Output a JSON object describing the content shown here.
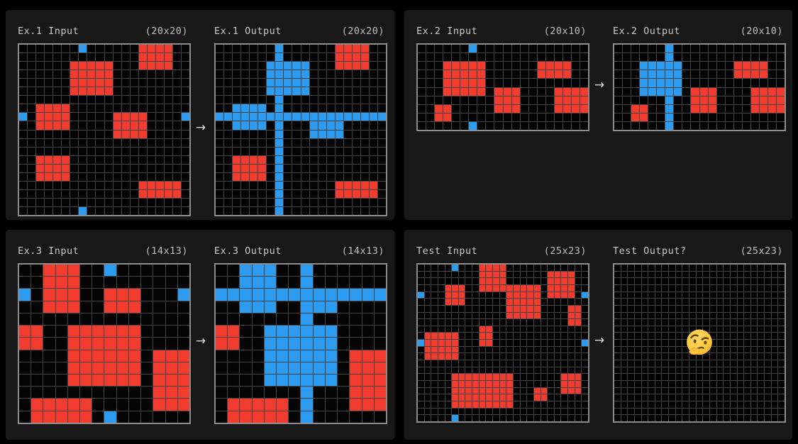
{
  "ui": {
    "arrow": "→",
    "emoji": "thinking-face"
  },
  "colors": {
    "page_bg": "#000000",
    "panel_bg": "#181818",
    "header_text": "#c9c9c9",
    "grid_border": "#8c8c8c",
    "grid_line": "#434343",
    "cell_bg": "#040404",
    "red": "#F23C2F",
    "blue": "#2D9BF0"
  },
  "panels": [
    {
      "id": "ex1",
      "input": {
        "label": "Ex.1 Input",
        "size_label": "(20x20)",
        "rows": 20,
        "cols": 20,
        "cell": 12,
        "blues": [
          [
            0,
            7
          ],
          [
            8,
            0
          ],
          [
            8,
            19
          ],
          [
            19,
            7
          ]
        ],
        "red_rects": [
          [
            0,
            14,
            2,
            17
          ],
          [
            2,
            6,
            5,
            10
          ],
          [
            7,
            2,
            9,
            5
          ],
          [
            8,
            11,
            10,
            14
          ],
          [
            13,
            2,
            15,
            5
          ],
          [
            16,
            14,
            17,
            18
          ]
        ],
        "blue_rects": [],
        "blue_rows": [],
        "blue_cols": []
      },
      "output": {
        "label": "Ex.1 Output",
        "size_label": "(20x20)",
        "rows": 20,
        "cols": 20,
        "cell": 12,
        "blues": [],
        "red_rects": [
          [
            0,
            14,
            2,
            17
          ],
          [
            13,
            2,
            15,
            5
          ],
          [
            16,
            14,
            17,
            18
          ]
        ],
        "blue_rects": [
          [
            2,
            6,
            5,
            10
          ],
          [
            7,
            2,
            9,
            5
          ],
          [
            8,
            11,
            10,
            14
          ]
        ],
        "blue_rows": [
          8
        ],
        "blue_cols": [
          7
        ]
      }
    },
    {
      "id": "ex2",
      "input": {
        "label": "Ex.2 Input",
        "size_label": "(20x10)",
        "rows": 10,
        "cols": 20,
        "cell": 12,
        "blues": [
          [
            0,
            6
          ],
          [
            9,
            6
          ]
        ],
        "red_rects": [
          [
            2,
            3,
            5,
            7
          ],
          [
            2,
            14,
            3,
            17
          ],
          [
            5,
            9,
            7,
            11
          ],
          [
            5,
            16,
            7,
            19
          ],
          [
            7,
            2,
            8,
            3
          ]
        ],
        "blue_rects": [],
        "blue_rows": [],
        "blue_cols": []
      },
      "output": {
        "label": "Ex.2 Output",
        "size_label": "(20x10)",
        "rows": 10,
        "cols": 20,
        "cell": 12,
        "blues": [],
        "red_rects": [
          [
            2,
            14,
            3,
            17
          ],
          [
            5,
            9,
            7,
            11
          ],
          [
            5,
            16,
            7,
            19
          ],
          [
            7,
            2,
            8,
            3
          ]
        ],
        "blue_rects": [
          [
            2,
            3,
            5,
            7
          ]
        ],
        "blue_rows": [],
        "blue_cols": [
          6
        ]
      }
    },
    {
      "id": "ex3",
      "input": {
        "label": "Ex.3 Input",
        "size_label": "(14x13)",
        "rows": 13,
        "cols": 14,
        "cell": 17.14,
        "blues": [
          [
            0,
            7
          ],
          [
            2,
            0
          ],
          [
            2,
            13
          ],
          [
            12,
            7
          ]
        ],
        "red_rects": [
          [
            0,
            2,
            3,
            4
          ],
          [
            2,
            7,
            3,
            9
          ],
          [
            5,
            0,
            6,
            1
          ],
          [
            5,
            4,
            9,
            9
          ],
          [
            7,
            11,
            11,
            13
          ],
          [
            11,
            1,
            12,
            5
          ]
        ],
        "blue_rects": [],
        "blue_rows": [],
        "blue_cols": []
      },
      "output": {
        "label": "Ex.3 Output",
        "size_label": "(14x13)",
        "rows": 13,
        "cols": 14,
        "cell": 17.14,
        "blues": [],
        "red_rects": [
          [
            5,
            0,
            6,
            1
          ],
          [
            7,
            11,
            11,
            13
          ],
          [
            11,
            1,
            12,
            5
          ]
        ],
        "blue_rects": [
          [
            0,
            2,
            3,
            4
          ],
          [
            2,
            7,
            3,
            9
          ],
          [
            5,
            4,
            9,
            9
          ]
        ],
        "blue_rows": [
          2
        ],
        "blue_cols": [
          7
        ]
      }
    },
    {
      "id": "test",
      "input": {
        "label": "Test Input",
        "size_label": "(25x23)",
        "rows": 23,
        "cols": 25,
        "cell": 9.6,
        "blues": [
          [
            0,
            5
          ],
          [
            4,
            0
          ],
          [
            4,
            24
          ],
          [
            11,
            0
          ],
          [
            11,
            24
          ],
          [
            22,
            5
          ]
        ],
        "red_rects": [
          [
            0,
            9,
            3,
            12
          ],
          [
            1,
            19,
            4,
            22
          ],
          [
            3,
            4,
            5,
            6
          ],
          [
            3,
            13,
            7,
            17
          ],
          [
            6,
            22,
            8,
            23
          ],
          [
            9,
            9,
            11,
            10
          ],
          [
            10,
            1,
            13,
            5
          ],
          [
            16,
            5,
            20,
            13
          ],
          [
            16,
            21,
            18,
            23
          ],
          [
            18,
            17,
            19,
            18
          ]
        ],
        "blue_rects": [],
        "blue_rows": [],
        "blue_cols": []
      },
      "output": {
        "label": "Test Output?",
        "size_label": "(25x23)",
        "rows": 23,
        "cols": 25,
        "cell": 9.6,
        "blues": [],
        "red_rects": [],
        "blue_rects": [],
        "blue_rows": [],
        "blue_cols": [],
        "show_emoji": true
      }
    }
  ]
}
